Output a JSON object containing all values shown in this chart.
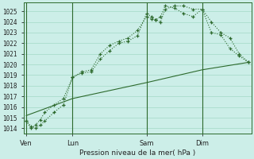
{
  "title": "Pression niveau de la mer( hPa )",
  "bg_color": "#cceee8",
  "grid_color": "#aaddcc",
  "line_color": "#2d6a2d",
  "ylim": [
    1013.5,
    1025.8
  ],
  "yticks": [
    1014,
    1015,
    1016,
    1017,
    1018,
    1019,
    1020,
    1021,
    1022,
    1023,
    1024,
    1025
  ],
  "day_labels": [
    "Ven",
    "Lun",
    "Sam",
    "Dim"
  ],
  "day_positions": [
    0,
    5,
    13,
    19
  ],
  "vline_positions": [
    0,
    5,
    13,
    19
  ],
  "xlim": [
    -0.3,
    24.3
  ],
  "series1_x": [
    0,
    0.5,
    1,
    1.5,
    2,
    3,
    4,
    5,
    6,
    7,
    8,
    9,
    10,
    11,
    12,
    13,
    13.5,
    14,
    14.5,
    15,
    16,
    17,
    18,
    19,
    20,
    21,
    22,
    23,
    24
  ],
  "series1_y": [
    1014.7,
    1014.2,
    1014.0,
    1014.3,
    1014.7,
    1015.5,
    1016.2,
    1018.8,
    1019.2,
    1019.3,
    1020.5,
    1021.3,
    1022.0,
    1022.2,
    1022.7,
    1024.8,
    1024.5,
    1024.2,
    1024.0,
    1025.2,
    1025.5,
    1025.5,
    1025.2,
    1025.2,
    1024.0,
    1023.0,
    1022.5,
    1021.0,
    1020.2
  ],
  "series2_x": [
    0,
    0.5,
    1,
    1.5,
    2,
    3,
    4,
    5,
    6,
    7,
    8,
    9,
    10,
    11,
    12,
    13,
    13.5,
    14,
    14.5,
    15,
    16,
    17,
    18,
    19,
    20,
    21,
    22,
    23,
    24
  ],
  "series2_y": [
    1014.7,
    1014.0,
    1014.3,
    1014.8,
    1015.5,
    1016.2,
    1016.8,
    1018.8,
    1019.3,
    1019.5,
    1021.0,
    1021.8,
    1022.2,
    1022.5,
    1023.2,
    1024.5,
    1024.3,
    1024.2,
    1024.5,
    1025.5,
    1025.3,
    1024.8,
    1024.5,
    1025.2,
    1023.0,
    1022.8,
    1021.5,
    1020.8,
    1020.2
  ],
  "series3_x": [
    0,
    5,
    13,
    19,
    24
  ],
  "series3_y": [
    1015.2,
    1016.8,
    1018.3,
    1019.5,
    1020.2
  ]
}
